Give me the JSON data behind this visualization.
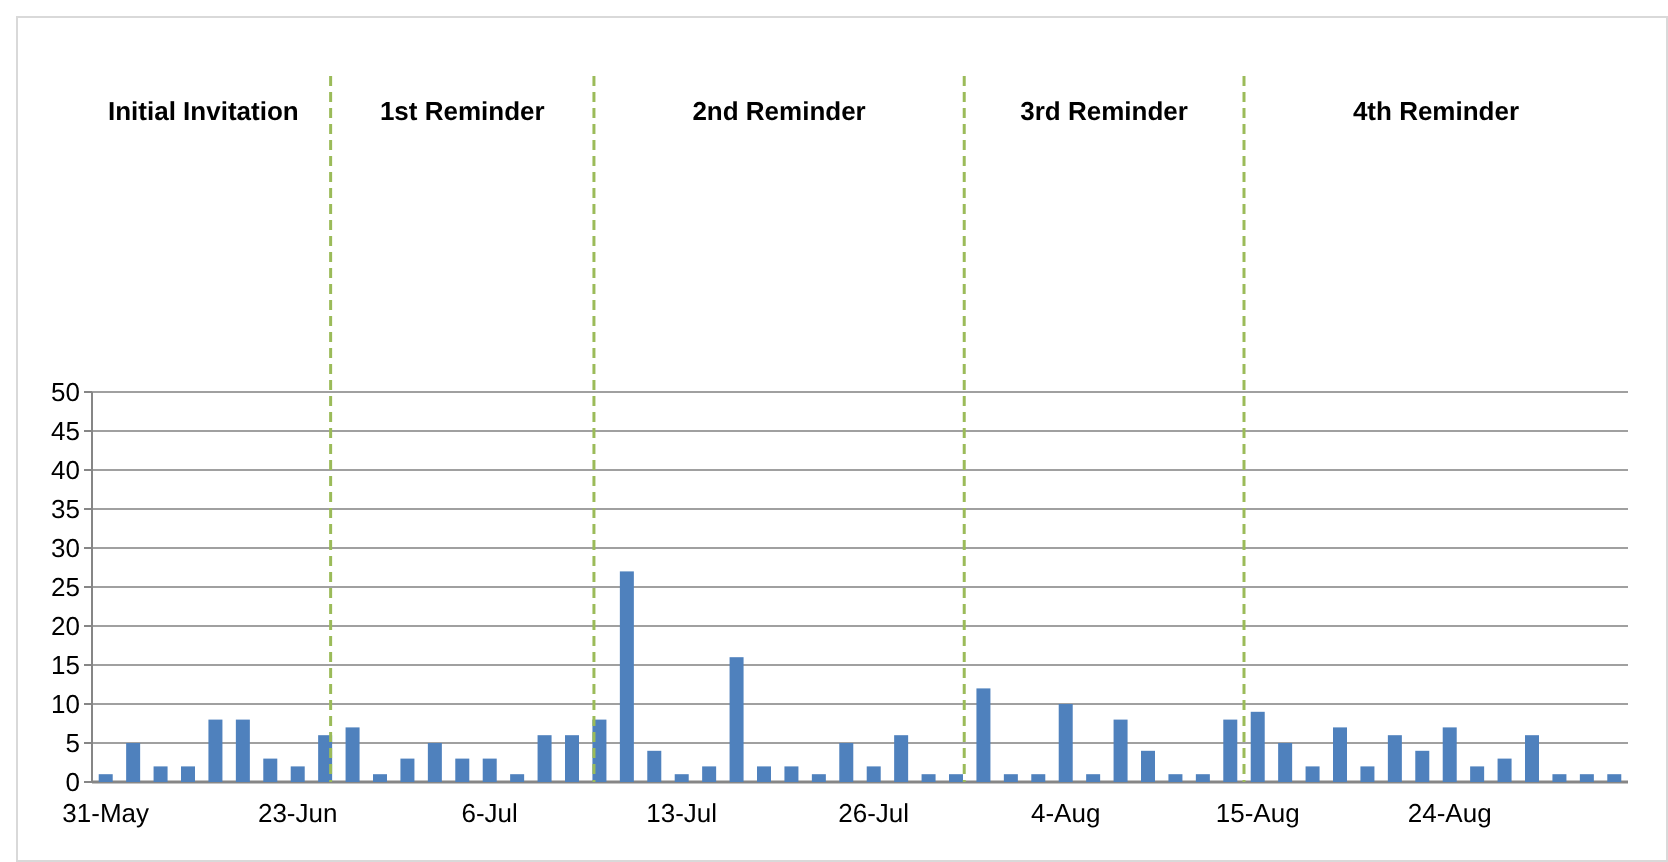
{
  "chart_data": {
    "type": "bar",
    "categories": [
      "31-May",
      null,
      null,
      null,
      null,
      null,
      null,
      "23-Jun",
      null,
      null,
      null,
      null,
      null,
      null,
      "6-Jul",
      null,
      null,
      null,
      null,
      null,
      null,
      "13-Jul",
      null,
      null,
      null,
      null,
      null,
      null,
      "26-Jul",
      null,
      null,
      null,
      null,
      null,
      null,
      "4-Aug",
      null,
      null,
      null,
      null,
      null,
      null,
      "15-Aug",
      null,
      null,
      null,
      null,
      null,
      null,
      "24-Aug",
      null,
      null,
      null,
      null,
      null,
      null
    ],
    "values": [
      1,
      5,
      2,
      2,
      8,
      8,
      3,
      2,
      6,
      7,
      1,
      3,
      5,
      3,
      3,
      1,
      6,
      6,
      8,
      27,
      4,
      1,
      2,
      16,
      2,
      2,
      1,
      5,
      2,
      6,
      1,
      1,
      12,
      1,
      1,
      10,
      1,
      8,
      4,
      1,
      1,
      8,
      9,
      5,
      2,
      7,
      2,
      6,
      4,
      7,
      2,
      3,
      6,
      1,
      1,
      1
    ],
    "color": "#4f81bd",
    "ylim": [
      0,
      50
    ],
    "yticks": [
      0,
      5,
      10,
      15,
      20,
      25,
      30,
      35,
      40,
      45,
      50
    ],
    "grid": "y",
    "annotations": [
      "Initial Invitation",
      "1st Reminder",
      "2nd Reminder",
      "3rd Reminder",
      "4th Reminder"
    ]
  }
}
